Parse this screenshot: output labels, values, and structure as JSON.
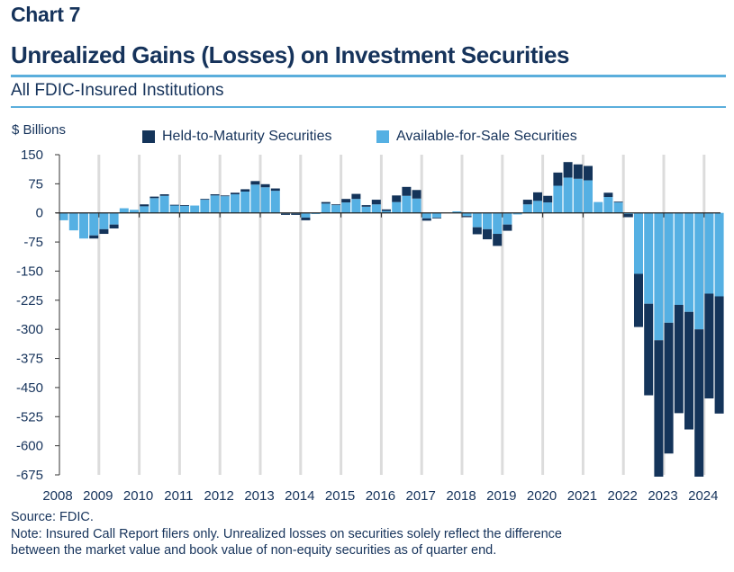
{
  "header": {
    "chart_number": "Chart 7",
    "title": "Unrealized Gains (Losses) on Investment Securities",
    "subtitle": "All FDIC-Insured Institutions"
  },
  "colors": {
    "held_to_maturity": "#14345a",
    "available_for_sale": "#55b0e3",
    "title": "#16335b",
    "rule": "#5aaedc",
    "gridline": "#dcdcdc"
  },
  "footer": {
    "source": "Source: FDIC.",
    "note_line1": "Note: Insured Call Report filers only. Unrealized losses on securities solely reflect the difference",
    "note_line2": "between the market value and book value of non-equity securities as of quarter end."
  },
  "chart_data": {
    "type": "bar",
    "stacked": true,
    "title": "Unrealized Gains (Losses) on Investment Securities",
    "subtitle": "All FDIC-Insured Institutions",
    "ylabel": "$ Billions",
    "xlabel": "",
    "ylim": [
      -675,
      150
    ],
    "yticks": [
      150,
      75,
      0,
      -75,
      -150,
      -225,
      -300,
      -375,
      -450,
      -525,
      -600,
      -675
    ],
    "xtick_labels": [
      "2008",
      "2009",
      "2010",
      "2011",
      "2012",
      "2013",
      "2014",
      "2015",
      "2016",
      "2017",
      "2018",
      "2019",
      "2020",
      "2021",
      "2022",
      "2023",
      "2024"
    ],
    "grid": "vertical at year starts",
    "legend": "top",
    "legend_entries": [
      "Held-to-Maturity Securities",
      "Available-for-Sale Securities"
    ],
    "categories": [
      "2008Q1",
      "2008Q2",
      "2008Q3",
      "2008Q4",
      "2009Q1",
      "2009Q2",
      "2009Q3",
      "2009Q4",
      "2010Q1",
      "2010Q2",
      "2010Q3",
      "2010Q4",
      "2011Q1",
      "2011Q2",
      "2011Q3",
      "2011Q4",
      "2012Q1",
      "2012Q2",
      "2012Q3",
      "2012Q4",
      "2013Q1",
      "2013Q2",
      "2013Q3",
      "2013Q4",
      "2014Q1",
      "2014Q2",
      "2014Q3",
      "2014Q4",
      "2015Q1",
      "2015Q2",
      "2015Q3",
      "2015Q4",
      "2016Q1",
      "2016Q2",
      "2016Q3",
      "2016Q4",
      "2017Q1",
      "2017Q2",
      "2017Q3",
      "2017Q4",
      "2018Q1",
      "2018Q2",
      "2018Q3",
      "2018Q4",
      "2019Q1",
      "2019Q2",
      "2019Q3",
      "2019Q4",
      "2020Q1",
      "2020Q2",
      "2020Q3",
      "2020Q4",
      "2021Q1",
      "2021Q2",
      "2021Q3",
      "2021Q4",
      "2022Q1",
      "2022Q2",
      "2022Q3",
      "2022Q4",
      "2023Q1",
      "2023Q2",
      "2023Q3",
      "2023Q4",
      "2024Q1",
      "2024Q2"
    ],
    "series": [
      {
        "name": "Available-for-Sale Securities",
        "values": [
          -19,
          -45,
          -66,
          -58,
          -42,
          -30,
          12,
          8,
          17,
          38,
          44,
          19,
          18,
          19,
          34,
          45,
          43,
          48,
          55,
          73,
          66,
          57,
          -2,
          -2,
          -12,
          -3,
          24,
          20,
          27,
          36,
          16,
          22,
          5,
          28,
          44,
          37,
          -14,
          -12,
          0,
          4,
          -8,
          -37,
          -42,
          -54,
          -30,
          -4,
          22,
          31,
          27,
          70,
          91,
          88,
          84,
          28,
          41,
          27,
          -3,
          -157,
          -234,
          -328,
          -283,
          -237,
          -255,
          -300,
          -208,
          -215
        ]
      },
      {
        "name": "Held-to-Maturity Securities",
        "values": [
          0,
          0,
          0,
          -8,
          -12,
          -10,
          0,
          0,
          5,
          4,
          4,
          2,
          2,
          0,
          2,
          3,
          2,
          4,
          6,
          9,
          8,
          6,
          -3,
          -3,
          -7,
          0,
          4,
          2,
          9,
          13,
          4,
          12,
          4,
          17,
          23,
          22,
          -6,
          -2,
          0,
          0,
          -3,
          -18,
          -26,
          -31,
          -16,
          0,
          12,
          22,
          17,
          34,
          40,
          37,
          37,
          0,
          11,
          2,
          -8,
          -137,
          -236,
          -362,
          -337,
          -279,
          -303,
          -384,
          -270,
          -302
        ]
      }
    ]
  }
}
